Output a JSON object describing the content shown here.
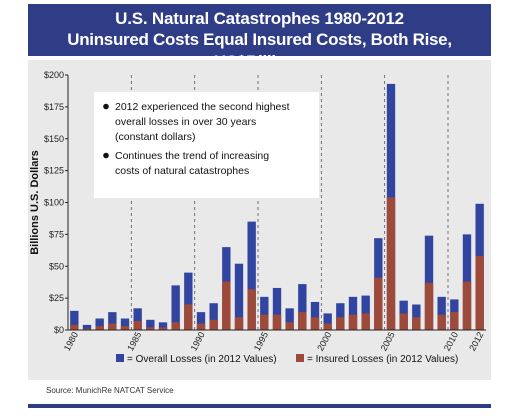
{
  "title": {
    "line1": "U.S. Natural Catastrophes 1980-2012",
    "line2": "Uninsured Costs Equal Insured Costs, Both Rise, US$Billions"
  },
  "notes": [
    [
      "2012 experienced the second highest",
      "overall losses in over 30 years",
      "(constant dollars)"
    ],
    [
      "Continues the trend of increasing",
      "costs of natural catastrophes"
    ]
  ],
  "source": "Source: MunichRe NATCAT Service",
  "colors": {
    "overall": "#3044a0",
    "insured": "#9e4a3a",
    "header": "#2f3c86",
    "panel": "#e9e9e9"
  },
  "chart_data": {
    "type": "bar",
    "stacked": "overlay",
    "ylabel": "Billions U.S. Dollars",
    "ylim": [
      0,
      200
    ],
    "yticks": [
      "$0",
      "$25",
      "$50",
      "$75",
      "$100",
      "$125",
      "$150",
      "$175",
      "$200"
    ],
    "xticks": [
      "1980",
      "1985",
      "1990",
      "1995",
      "2000",
      "2005",
      "2010",
      "2012"
    ],
    "categories": [
      1980,
      1981,
      1982,
      1983,
      1984,
      1985,
      1986,
      1987,
      1988,
      1989,
      1990,
      1991,
      1992,
      1993,
      1994,
      1995,
      1996,
      1997,
      1998,
      1999,
      2000,
      2001,
      2002,
      2003,
      2004,
      2005,
      2006,
      2007,
      2008,
      2009,
      2010,
      2011,
      2012
    ],
    "series": [
      {
        "name": "= Overall Losses (in 2012 Values)",
        "values": [
          15,
          4,
          9,
          14,
          9,
          17,
          8,
          6,
          35,
          45,
          14,
          21,
          65,
          52,
          85,
          26,
          33,
          17,
          36,
          22,
          13,
          21,
          26,
          27,
          72,
          193,
          23,
          20,
          74,
          26,
          24,
          75,
          99
        ]
      },
      {
        "name": "= Insured Losses (in 2012 Values)",
        "values": [
          4,
          1,
          3,
          5,
          3,
          7,
          2,
          2,
          6,
          20,
          5,
          8,
          38,
          10,
          32,
          12,
          12,
          6,
          14,
          10,
          5,
          10,
          12,
          13,
          41,
          104,
          13,
          10,
          37,
          12,
          14,
          38,
          58
        ]
      }
    ],
    "grid": "dashed vertical lines every 5 years",
    "legend": "bottom"
  }
}
